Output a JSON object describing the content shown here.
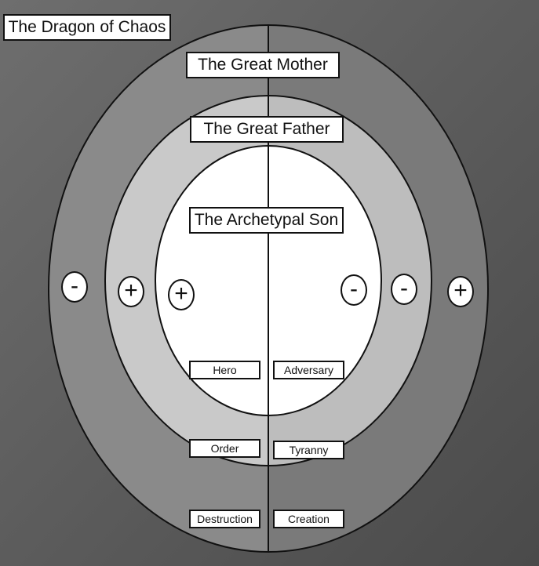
{
  "title": "The Dragon of Chaos",
  "rings": {
    "outer_label": "The Great Mother",
    "middle_label": "The Great Father",
    "inner_label": "The Archetypal Son"
  },
  "signs": {
    "outer_left": "-",
    "middle_left": "+",
    "inner_left": "+",
    "inner_right": "-",
    "middle_right": "-",
    "outer_right": "+"
  },
  "pairs": {
    "inner_left": "Hero",
    "inner_right": "Adversary",
    "middle_left": "Order",
    "middle_right": "Tyranny",
    "outer_left": "Destruction",
    "outer_right": "Creation"
  },
  "colors": {
    "background": "#5a5a5a",
    "outer_ring_left": "#8a8a8a",
    "outer_ring_right": "#7a7a7a",
    "middle_ring_left": "#c9c9c9",
    "middle_ring_right": "#bdbdbd",
    "inner_ring": "#ffffff"
  }
}
